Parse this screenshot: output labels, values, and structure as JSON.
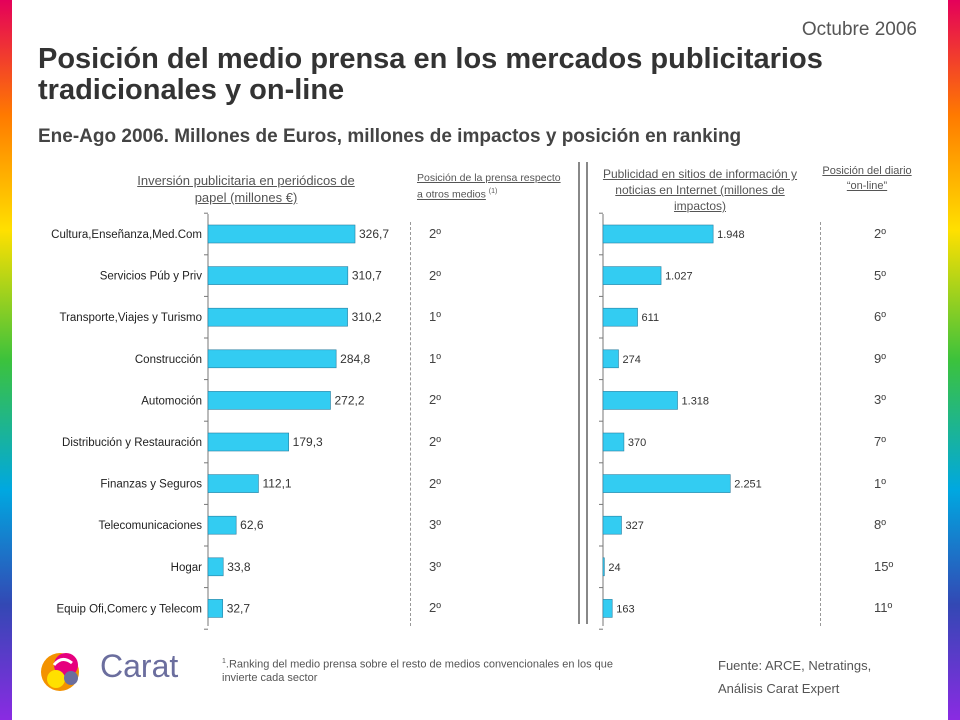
{
  "header": {
    "date": "Octubre 2006",
    "title": "Posición del medio prensa en los mercados publicitarios tradicionales y on-line",
    "subtitle": "Ene-Ago 2006. Millones de Euros, millones de impactos y posición en ranking"
  },
  "columns": {
    "investment_header": "Inversión publicitaria en periódicos de papel (millones €)",
    "press_position_header": "Posición de la prensa respecto a otros medios",
    "press_position_note": "(1)",
    "web_header": "Publicidad en sitios de información y noticias en Internet (millones de impactos)",
    "online_rank_header": "Posición del diario “on-line”"
  },
  "chart_data": [
    {
      "type": "bar",
      "orientation": "horizontal",
      "categories": [
        "Cultura,Enseñanza,Med.Com",
        "Servicios Púb y Priv",
        "Transporte,Viajes y Turismo",
        "Construcción",
        "Automoción",
        "Distribución y Restauración",
        "Finanzas y Seguros",
        "Telecomunicaciones",
        "Hogar",
        "Equip Ofi,Comerc y Telecom"
      ],
      "values": [
        326.7,
        310.7,
        310.2,
        284.8,
        272.2,
        179.3,
        112.1,
        62.6,
        33.8,
        32.7
      ],
      "value_labels": [
        "326,7",
        "310,7",
        "310,2",
        "284,8",
        "272,2",
        "179,3",
        "112,1",
        "62,6",
        "33,8",
        "32,7"
      ],
      "xlim": [
        0,
        400
      ],
      "color": "#33ccf2"
    },
    {
      "type": "bar",
      "orientation": "horizontal",
      "categories": [
        "Cultura,Enseñanza,Med.Com",
        "Servicios Púb y Priv",
        "Transporte,Viajes y Turismo",
        "Construcción",
        "Automoción",
        "Distribución y Restauración",
        "Finanzas y Seguros",
        "Telecomunicaciones",
        "Hogar",
        "Equip Ofi,Comerc y Telecom"
      ],
      "values": [
        1948,
        1027,
        611,
        274,
        1318,
        370,
        2251,
        327,
        24,
        163
      ],
      "value_labels": [
        "1.948",
        "1.027",
        "611",
        "274",
        "1.318",
        "370",
        "2.251",
        "327",
        "24",
        "163"
      ],
      "xlim": [
        0,
        2600
      ],
      "color": "#33ccf2"
    }
  ],
  "press_positions": [
    "2º",
    "2º",
    "1º",
    "1º",
    "2º",
    "2º",
    "2º",
    "3º",
    "3º",
    "2º"
  ],
  "online_positions": [
    "2º",
    "5º",
    "6º",
    "9º",
    "3º",
    "7º",
    "1º",
    "8º",
    "15º",
    "11º"
  ],
  "footer": {
    "footnote_mark": "1",
    "footnote": ".Ranking del medio prensa sobre el resto de medios convencionales en los que invierte cada sector",
    "source_line1": "Fuente: ARCE, Netratings,",
    "source_line2": "Análisis Carat Expert",
    "logo_text": "Carat"
  }
}
